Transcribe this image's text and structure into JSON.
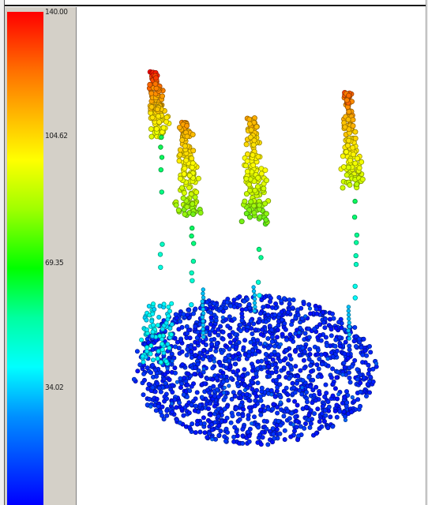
{
  "colorScale": {
    "ticks": [
      {
        "value": "140.00"
      },
      {
        "value": "104.62"
      },
      {
        "value": "69.35"
      },
      {
        "value": "34.02"
      }
    ],
    "colors": {
      "high": "#ff0000",
      "upperMid": "#ffff00",
      "mid": "#00ff00",
      "lowerMid": "#00ffff",
      "low": "#0000ff"
    }
  },
  "pointCloud": {
    "description_colormap": "height-colored",
    "trees": 4,
    "groundColor": "#0a3ad8"
  }
}
